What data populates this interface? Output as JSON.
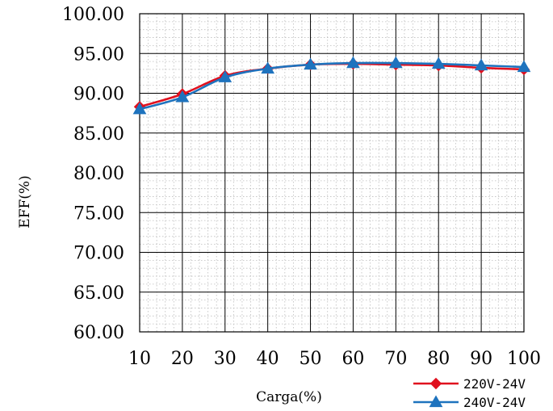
{
  "chart_data": {
    "type": "line",
    "xlabel": "Carga(%)",
    "ylabel": "EFF(%)",
    "x": [
      10,
      20,
      30,
      40,
      50,
      60,
      70,
      80,
      90,
      100
    ],
    "x_tick_labels": [
      "10",
      "20",
      "30",
      "40",
      "50",
      "60",
      "70",
      "80",
      "90",
      "100"
    ],
    "y_tick_labels": [
      "100.00",
      "95.00",
      "90.00",
      "85.00",
      "80.00",
      "75.00",
      "70.00",
      "65.00",
      "60.00"
    ],
    "xlim": [
      10,
      100
    ],
    "ylim": [
      60,
      100
    ],
    "grid": true,
    "legend_position": "bottom-right",
    "series": [
      {
        "name": "220V-24V",
        "color": "#e0101e",
        "marker": "diamond",
        "values": [
          88.3,
          89.9,
          92.2,
          93.1,
          93.6,
          93.7,
          93.6,
          93.5,
          93.2,
          93.0
        ]
      },
      {
        "name": "240V-24V",
        "color": "#1e73be",
        "marker": "triangle",
        "values": [
          88.0,
          89.5,
          92.0,
          93.1,
          93.6,
          93.8,
          93.8,
          93.7,
          93.5,
          93.3
        ]
      }
    ]
  }
}
